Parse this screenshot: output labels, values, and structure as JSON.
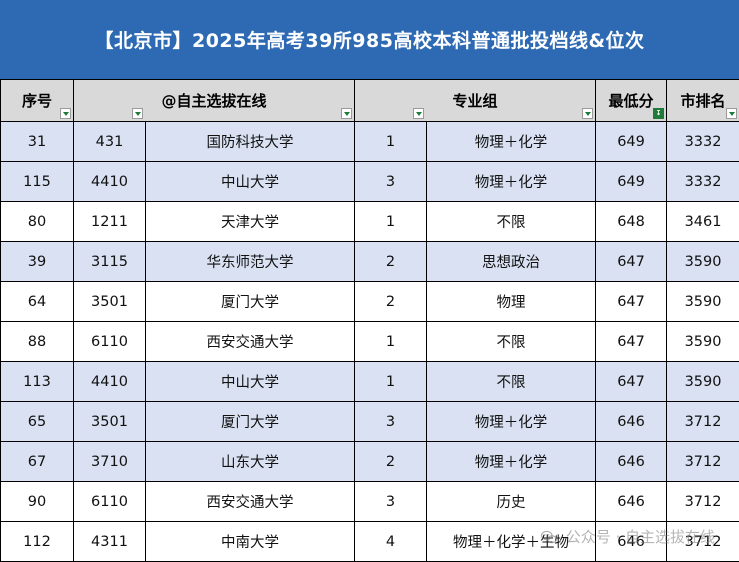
{
  "title": "【北京市】2025年高考39所985高校本科普通批投档线&位次",
  "columns": [
    "序号",
    "@自主选拔在线",
    "专业组",
    "最低分",
    "市排名"
  ],
  "rows": [
    {
      "seq": "31",
      "code": "431",
      "school": "国防科技大学",
      "group": "1",
      "subjects": "物理＋化学",
      "min_score": "649",
      "rank": "3332",
      "style": "hl"
    },
    {
      "seq": "115",
      "code": "4410",
      "school": "中山大学",
      "group": "3",
      "subjects": "物理＋化学",
      "min_score": "649",
      "rank": "3332",
      "style": "hl"
    },
    {
      "seq": "80",
      "code": "1211",
      "school": "天津大学",
      "group": "1",
      "subjects": "不限",
      "min_score": "648",
      "rank": "3461",
      "style": "wh"
    },
    {
      "seq": "39",
      "code": "3115",
      "school": "华东师范大学",
      "group": "2",
      "subjects": "思想政治",
      "min_score": "647",
      "rank": "3590",
      "style": "hl"
    },
    {
      "seq": "64",
      "code": "3501",
      "school": "厦门大学",
      "group": "2",
      "subjects": "物理",
      "min_score": "647",
      "rank": "3590",
      "style": "wh"
    },
    {
      "seq": "88",
      "code": "6110",
      "school": "西安交通大学",
      "group": "1",
      "subjects": "不限",
      "min_score": "647",
      "rank": "3590",
      "style": "wh"
    },
    {
      "seq": "113",
      "code": "4410",
      "school": "中山大学",
      "group": "1",
      "subjects": "不限",
      "min_score": "647",
      "rank": "3590",
      "style": "hl"
    },
    {
      "seq": "65",
      "code": "3501",
      "school": "厦门大学",
      "group": "3",
      "subjects": "物理＋化学",
      "min_score": "646",
      "rank": "3712",
      "style": "hl"
    },
    {
      "seq": "67",
      "code": "3710",
      "school": "山东大学",
      "group": "2",
      "subjects": "物理＋化学",
      "min_score": "646",
      "rank": "3712",
      "style": "hl"
    },
    {
      "seq": "90",
      "code": "6110",
      "school": "西安交通大学",
      "group": "3",
      "subjects": "历史",
      "min_score": "646",
      "rank": "3712",
      "style": "wh"
    },
    {
      "seq": "112",
      "code": "4311",
      "school": "中南大学",
      "group": "4",
      "subjects": "物理＋化学＋生物",
      "min_score": "646",
      "rank": "3712",
      "style": "wh"
    }
  ],
  "watermark": "公众号 · 自主选拔在线",
  "colors": {
    "title_bg": "#2e6ab3",
    "header_bg": "#d9d9d9",
    "highlight_row": "#d9e1f2",
    "filter_green": "#1e7b3a"
  },
  "icons": {
    "filter": "filter-dropdown-icon",
    "sorted_filter": "sort-descending-filter-icon",
    "watermark": "wechat-icon"
  }
}
